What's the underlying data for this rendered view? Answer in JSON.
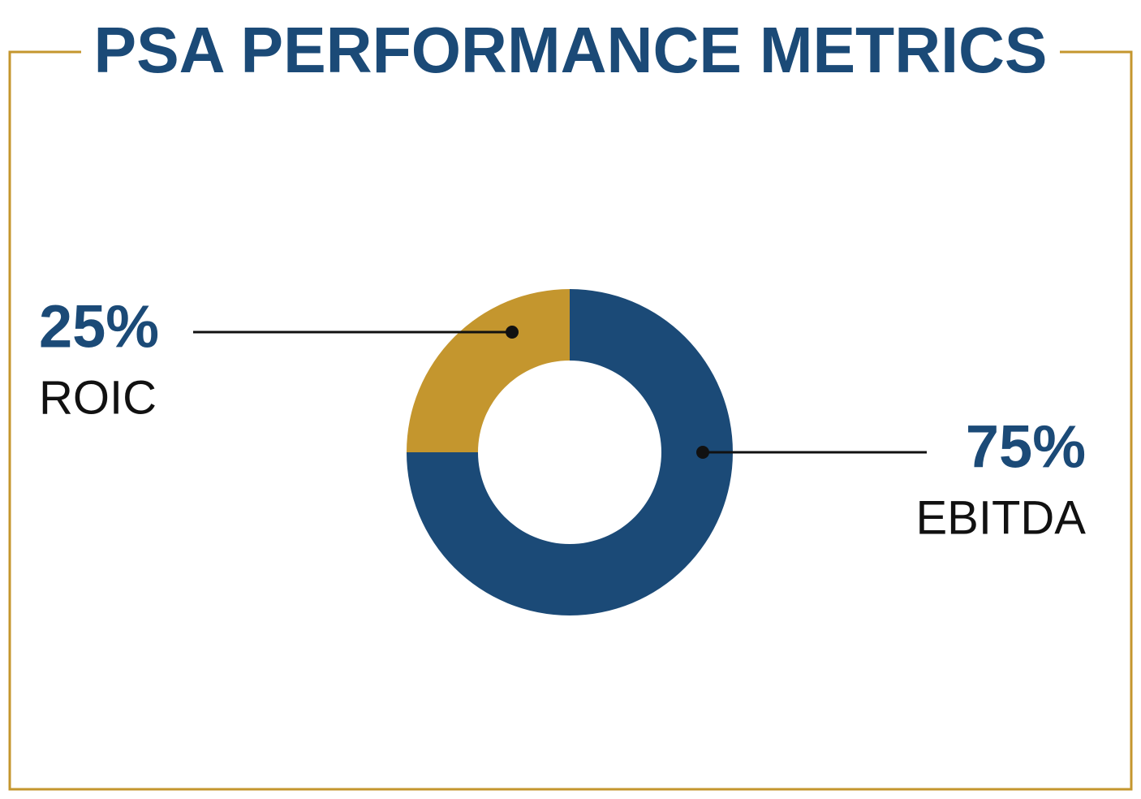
{
  "chart_data": {
    "type": "pie",
    "title": "PSA PERFORMANCE METRICS",
    "categories": [
      "ROIC",
      "EBITDA"
    ],
    "values": [
      25,
      75
    ],
    "value_labels": [
      "25%",
      "75%"
    ],
    "colors": [
      "#c4962e",
      "#1b4a77"
    ]
  }
}
